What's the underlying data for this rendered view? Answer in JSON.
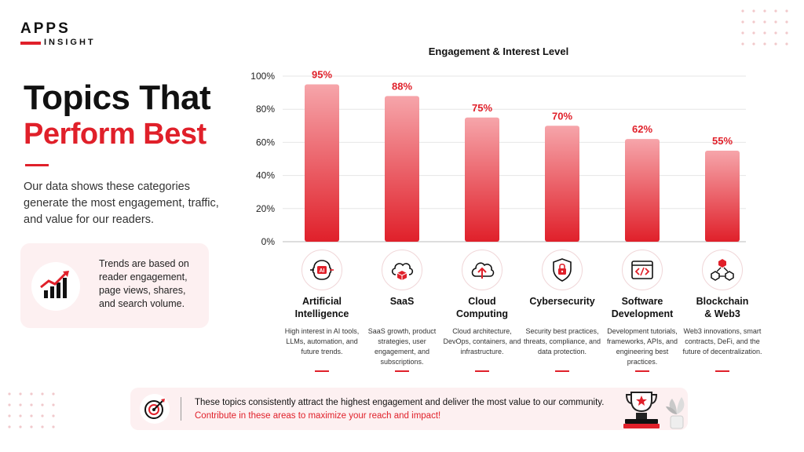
{
  "logo": {
    "top": "APPS",
    "bottom": "INSIGHT"
  },
  "heading": {
    "line1": "Topics That",
    "line2": "Perform Best"
  },
  "intro": "Our data shows these categories generate the most engagement, traffic, and value for our readers.",
  "trends_note": "Trends are based on reader engagement, page views, shares, and search volume.",
  "chart_data": {
    "type": "bar",
    "title": "Engagement & Interest Level",
    "categories": [
      "Artificial Intelligence",
      "SaaS",
      "Cloud Computing",
      "Cybersecurity",
      "Software Development",
      "Blockchain & Web3"
    ],
    "values": [
      95,
      88,
      75,
      70,
      62,
      55
    ],
    "value_labels": [
      "95%",
      "88%",
      "75%",
      "70%",
      "62%",
      "55%"
    ],
    "ylim": [
      0,
      100
    ],
    "yticks": [
      0,
      20,
      40,
      60,
      80,
      100
    ],
    "ytick_labels": [
      "0%",
      "20%",
      "40%",
      "60%",
      "80%",
      "100%"
    ],
    "grid": true,
    "legend": false,
    "bar_color": "#e0202a"
  },
  "categories": [
    {
      "name_line1": "Artificial",
      "name_line2": "Intelligence",
      "icon": "ai-brain-icon",
      "desc": "High interest in AI tools, LLMs, automation, and future trends."
    },
    {
      "name_line1": "SaaS",
      "name_line2": "",
      "icon": "cloud-cube-icon",
      "desc": "SaaS growth, product strategies, user engagement, and subscriptions."
    },
    {
      "name_line1": "Cloud",
      "name_line2": "Computing",
      "icon": "cloud-upload-icon",
      "desc": "Cloud architecture, DevOps, containers, and infrastructure."
    },
    {
      "name_line1": "Cybersecurity",
      "name_line2": "",
      "icon": "shield-lock-icon",
      "desc": "Security best practices, threats, compliance, and data protection."
    },
    {
      "name_line1": "Software",
      "name_line2": "Development",
      "icon": "code-window-icon",
      "desc": "Development tutorials, frameworks, APIs, and engineering best practices."
    },
    {
      "name_line1": "Blockchain",
      "name_line2": "& Web3",
      "icon": "blockchain-cubes-icon",
      "desc": "Web3 innovations, smart contracts, DeFi, and the future of decentralization."
    }
  ],
  "banner": {
    "line1": "These topics consistently attract the highest engagement and deliver the most value to our community.",
    "line2": "Contribute in these areas to maximize your reach and impact!"
  },
  "colors": {
    "accent": "#e0202a",
    "text": "#111111",
    "card_bg": "#fdf0f1"
  },
  "ai_badge": "AI"
}
